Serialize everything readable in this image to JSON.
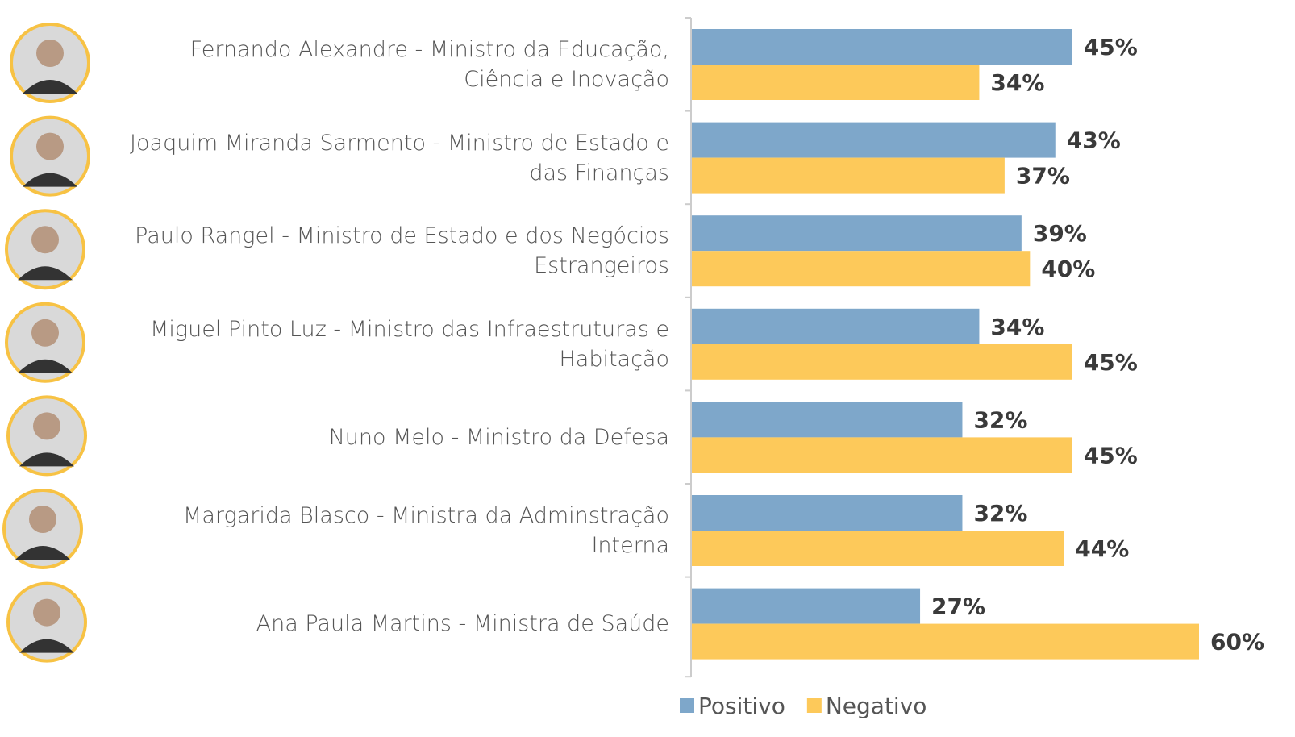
{
  "chart_data": {
    "type": "bar",
    "orientation": "horizontal",
    "categories": [
      "Fernando Alexandre - Ministro da Educação, Ciência e Inovação",
      "Joaquim Miranda Sarmento - Ministro de Estado e das Finanças",
      "Paulo Rangel - Ministro de Estado e dos Negócios Estrangeiros",
      "Miguel Pinto Luz - Ministro das Infraestruturas e Habitação",
      "Nuno Melo - Ministro da Defesa",
      "Margarida Blasco - Ministra da Adminstração Interna",
      "Ana Paula Martins - Ministra de Saúde"
    ],
    "series": [
      {
        "name": "Positivo",
        "color": "#7ea7ca",
        "values": [
          45,
          43,
          39,
          34,
          32,
          32,
          27
        ],
        "value_labels": [
          "45%",
          "43%",
          "39%",
          "34%",
          "32%",
          "32%",
          "27%"
        ]
      },
      {
        "name": "Negativo",
        "color": "#fdc95a",
        "values": [
          34,
          37,
          40,
          45,
          45,
          44,
          60
        ],
        "value_labels": [
          "34%",
          "37%",
          "40%",
          "45%",
          "45%",
          "44%",
          "60%"
        ]
      }
    ],
    "legend": "bottom"
  }
}
